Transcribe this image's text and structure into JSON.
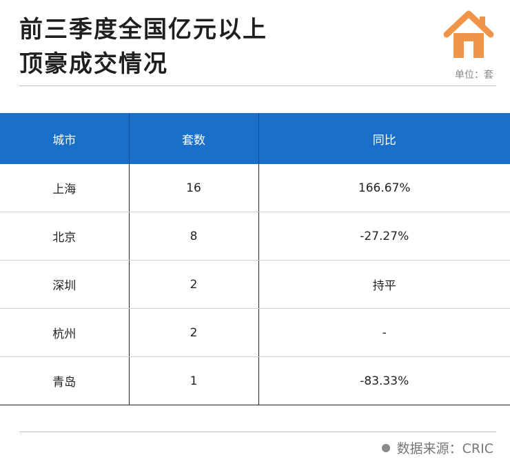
{
  "title": {
    "line1": "前三季度全国亿元以上",
    "line2": "顶豪成交情况"
  },
  "unit_label": "单位：套",
  "logo": {
    "icon": "house-icon",
    "color": "#f0944a"
  },
  "table": {
    "headers": [
      "城市",
      "套数",
      "同比"
    ],
    "rows": [
      [
        "上海",
        "16",
        "166.67%"
      ],
      [
        "北京",
        "8",
        "-27.27%"
      ],
      [
        "深圳",
        "2",
        "持平"
      ],
      [
        "杭州",
        "2",
        "-"
      ],
      [
        "青岛",
        "1",
        "-83.33%"
      ]
    ],
    "header_color": "#1a6fc9"
  },
  "source": "数据来源：CRIC",
  "chart_data": {
    "type": "table",
    "title": "前三季度全国亿元以上顶豪成交情况",
    "unit": "单位：套",
    "columns": [
      "城市",
      "套数",
      "同比"
    ],
    "rows": [
      {
        "城市": "上海",
        "套数": 16,
        "同比": "166.67%"
      },
      {
        "城市": "北京",
        "套数": 8,
        "同比": "-27.27%"
      },
      {
        "城市": "深圳",
        "套数": 2,
        "同比": "持平"
      },
      {
        "城市": "杭州",
        "套数": 2,
        "同比": "-"
      },
      {
        "城市": "青岛",
        "套数": 1,
        "同比": "-83.33%"
      }
    ]
  }
}
